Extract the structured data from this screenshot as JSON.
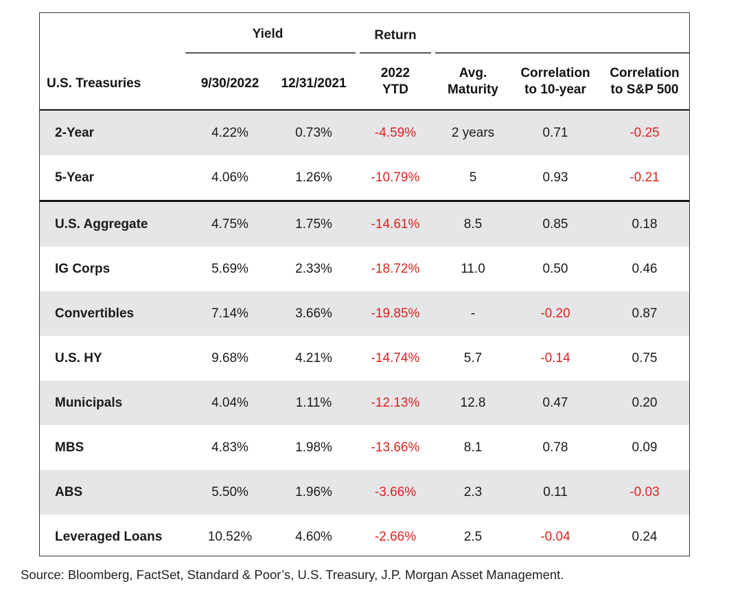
{
  "header": {
    "yield_label": "Yield",
    "return_label": "Return",
    "row_header": "U.S. Treasuries",
    "col_yield_a": "9/30/2022",
    "col_yield_b": "12/31/2021",
    "col_return_l1": "2022",
    "col_return_l2": "YTD",
    "col_maturity_l1": "Avg.",
    "col_maturity_l2": "Maturity",
    "col_corr10_l1": "Correlation",
    "col_corr10_l2": "to 10-year",
    "col_corrsp_l1": "Correlation",
    "col_corrsp_l2": "to S&P 500"
  },
  "rows": [
    {
      "name": "2-Year",
      "y1": "4.22%",
      "y2": "0.73%",
      "ret": "-4.59%",
      "mat": "2 years",
      "c10": "0.71",
      "csp": "-0.25"
    },
    {
      "name": "5-Year",
      "y1": "4.06%",
      "y2": "1.26%",
      "ret": "-10.79%",
      "mat": "5",
      "c10": "0.93",
      "csp": "-0.21"
    },
    {
      "name": "U.S. Aggregate",
      "y1": "4.75%",
      "y2": "1.75%",
      "ret": "-14.61%",
      "mat": "8.5",
      "c10": "0.85",
      "csp": "0.18"
    },
    {
      "name": "IG Corps",
      "y1": "5.69%",
      "y2": "2.33%",
      "ret": "-18.72%",
      "mat": "11.0",
      "c10": "0.50",
      "csp": "0.46"
    },
    {
      "name": "Convertibles",
      "y1": "7.14%",
      "y2": "3.66%",
      "ret": "-19.85%",
      "mat": "-",
      "c10": "-0.20",
      "csp": "0.87"
    },
    {
      "name": "U.S. HY",
      "y1": "9.68%",
      "y2": "4.21%",
      "ret": "-14.74%",
      "mat": "5.7",
      "c10": "-0.14",
      "csp": "0.75"
    },
    {
      "name": "Municipals",
      "y1": "4.04%",
      "y2": "1.11%",
      "ret": "-12.13%",
      "mat": "12.8",
      "c10": "0.47",
      "csp": "0.20"
    },
    {
      "name": "MBS",
      "y1": "4.83%",
      "y2": "1.98%",
      "ret": "-13.66%",
      "mat": "8.1",
      "c10": "0.78",
      "csp": "0.09"
    },
    {
      "name": "ABS",
      "y1": "5.50%",
      "y2": "1.96%",
      "ret": "-3.66%",
      "mat": "2.3",
      "c10": "0.11",
      "csp": "-0.03"
    },
    {
      "name": "Leveraged Loans",
      "y1": "10.52%",
      "y2": "4.60%",
      "ret": "-2.66%",
      "mat": "2.5",
      "c10": "-0.04",
      "csp": "0.24"
    }
  ],
  "colors": {
    "negative": "#e0201f",
    "shade": "#e6e6e8"
  },
  "source": "Source: Bloomberg, FactSet, Standard & Poor’s, U.S. Treasury, J.P. Morgan Asset Management."
}
